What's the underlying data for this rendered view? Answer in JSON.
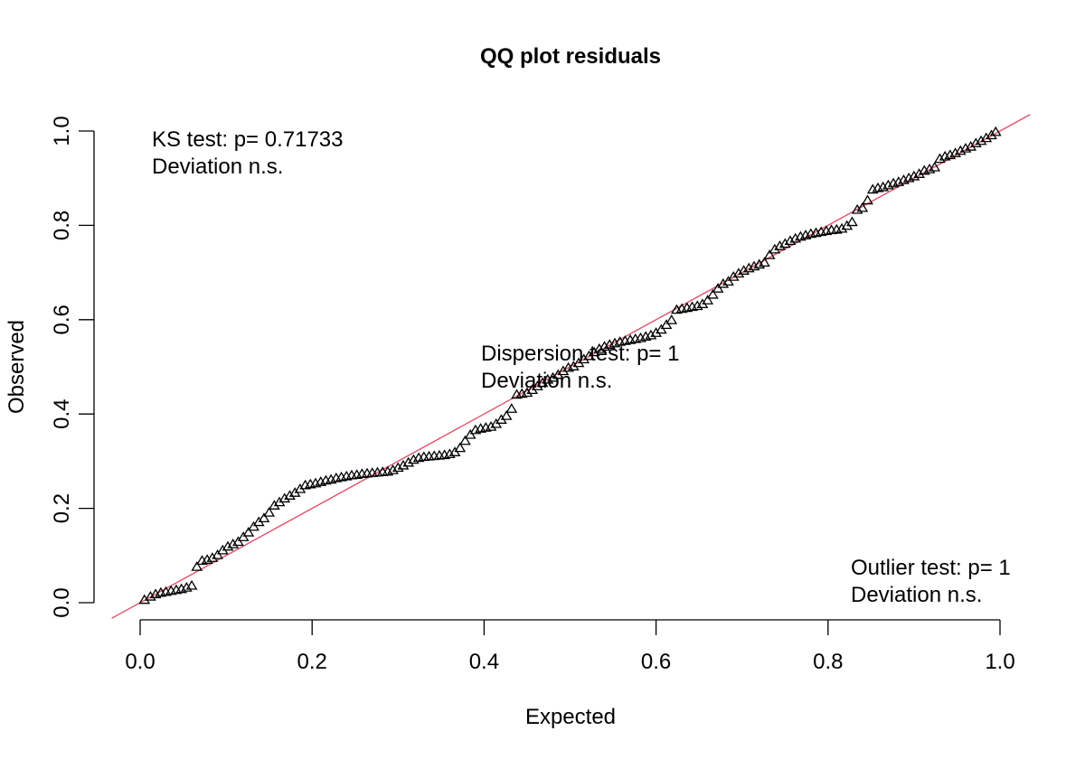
{
  "chart_data": {
    "type": "scatter",
    "title": "QQ plot residuals",
    "xlabel": "Expected",
    "ylabel": "Observed",
    "xlim": [
      0,
      1
    ],
    "ylim": [
      0,
      1
    ],
    "x_ticks": [
      "0.0",
      "0.2",
      "0.4",
      "0.6",
      "0.8",
      "1.0"
    ],
    "y_ticks": [
      "0.0",
      "0.2",
      "0.4",
      "0.6",
      "0.8",
      "1.0"
    ],
    "grid": false,
    "marker": "triangle",
    "reference_line": {
      "slope": 1,
      "intercept": 0,
      "color": "#df536b"
    },
    "annotations": {
      "ks": {
        "line1": "KS test: p= 0.71733",
        "line2": "Deviation  n.s."
      },
      "dispersion": {
        "line1": "Dispersion test: p= 1",
        "line2": "Deviation  n.s."
      },
      "outlier": {
        "line1": "Outlier test: p= 1",
        "line2": "Deviation  n.s."
      }
    },
    "points": [
      [
        0.005,
        0.005
      ],
      [
        0.012,
        0.012
      ],
      [
        0.018,
        0.017
      ],
      [
        0.024,
        0.02
      ],
      [
        0.03,
        0.022
      ],
      [
        0.036,
        0.024
      ],
      [
        0.042,
        0.026
      ],
      [
        0.048,
        0.028
      ],
      [
        0.054,
        0.031
      ],
      [
        0.06,
        0.035
      ],
      [
        0.066,
        0.075
      ],
      [
        0.072,
        0.088
      ],
      [
        0.078,
        0.09
      ],
      [
        0.084,
        0.094
      ],
      [
        0.09,
        0.1
      ],
      [
        0.096,
        0.11
      ],
      [
        0.102,
        0.118
      ],
      [
        0.108,
        0.123
      ],
      [
        0.114,
        0.128
      ],
      [
        0.12,
        0.138
      ],
      [
        0.126,
        0.148
      ],
      [
        0.132,
        0.16
      ],
      [
        0.138,
        0.17
      ],
      [
        0.144,
        0.178
      ],
      [
        0.15,
        0.19
      ],
      [
        0.156,
        0.205
      ],
      [
        0.162,
        0.212
      ],
      [
        0.168,
        0.22
      ],
      [
        0.174,
        0.226
      ],
      [
        0.18,
        0.232
      ],
      [
        0.186,
        0.24
      ],
      [
        0.192,
        0.248
      ],
      [
        0.198,
        0.25
      ],
      [
        0.204,
        0.252
      ],
      [
        0.21,
        0.255
      ],
      [
        0.216,
        0.258
      ],
      [
        0.222,
        0.26
      ],
      [
        0.228,
        0.263
      ],
      [
        0.234,
        0.265
      ],
      [
        0.24,
        0.267
      ],
      [
        0.246,
        0.269
      ],
      [
        0.252,
        0.27
      ],
      [
        0.258,
        0.272
      ],
      [
        0.264,
        0.273
      ],
      [
        0.27,
        0.274
      ],
      [
        0.276,
        0.275
      ],
      [
        0.282,
        0.276
      ],
      [
        0.288,
        0.277
      ],
      [
        0.294,
        0.28
      ],
      [
        0.3,
        0.285
      ],
      [
        0.306,
        0.29
      ],
      [
        0.312,
        0.296
      ],
      [
        0.318,
        0.302
      ],
      [
        0.324,
        0.306
      ],
      [
        0.33,
        0.308
      ],
      [
        0.336,
        0.309
      ],
      [
        0.342,
        0.31
      ],
      [
        0.348,
        0.311
      ],
      [
        0.354,
        0.312
      ],
      [
        0.36,
        0.314
      ],
      [
        0.366,
        0.318
      ],
      [
        0.372,
        0.327
      ],
      [
        0.378,
        0.342
      ],
      [
        0.384,
        0.355
      ],
      [
        0.39,
        0.365
      ],
      [
        0.396,
        0.368
      ],
      [
        0.402,
        0.37
      ],
      [
        0.408,
        0.372
      ],
      [
        0.414,
        0.378
      ],
      [
        0.42,
        0.387
      ],
      [
        0.426,
        0.395
      ],
      [
        0.432,
        0.41
      ],
      [
        0.438,
        0.44
      ],
      [
        0.444,
        0.442
      ],
      [
        0.45,
        0.444
      ],
      [
        0.456,
        0.45
      ],
      [
        0.462,
        0.458
      ],
      [
        0.468,
        0.465
      ],
      [
        0.474,
        0.472
      ],
      [
        0.48,
        0.476
      ],
      [
        0.486,
        0.482
      ],
      [
        0.492,
        0.49
      ],
      [
        0.498,
        0.497
      ],
      [
        0.504,
        0.5
      ],
      [
        0.51,
        0.507
      ],
      [
        0.516,
        0.515
      ],
      [
        0.522,
        0.522
      ],
      [
        0.528,
        0.53
      ],
      [
        0.534,
        0.537
      ],
      [
        0.54,
        0.542
      ],
      [
        0.546,
        0.546
      ],
      [
        0.552,
        0.549
      ],
      [
        0.558,
        0.552
      ],
      [
        0.564,
        0.554
      ],
      [
        0.57,
        0.556
      ],
      [
        0.576,
        0.558
      ],
      [
        0.582,
        0.56
      ],
      [
        0.588,
        0.563
      ],
      [
        0.594,
        0.566
      ],
      [
        0.6,
        0.571
      ],
      [
        0.606,
        0.578
      ],
      [
        0.612,
        0.588
      ],
      [
        0.618,
        0.598
      ],
      [
        0.624,
        0.62
      ],
      [
        0.63,
        0.622
      ],
      [
        0.636,
        0.624
      ],
      [
        0.642,
        0.626
      ],
      [
        0.648,
        0.628
      ],
      [
        0.654,
        0.632
      ],
      [
        0.66,
        0.64
      ],
      [
        0.666,
        0.652
      ],
      [
        0.672,
        0.665
      ],
      [
        0.678,
        0.675
      ],
      [
        0.684,
        0.68
      ],
      [
        0.69,
        0.69
      ],
      [
        0.696,
        0.697
      ],
      [
        0.702,
        0.703
      ],
      [
        0.708,
        0.708
      ],
      [
        0.714,
        0.712
      ],
      [
        0.72,
        0.716
      ],
      [
        0.726,
        0.72
      ],
      [
        0.732,
        0.736
      ],
      [
        0.738,
        0.748
      ],
      [
        0.744,
        0.755
      ],
      [
        0.75,
        0.76
      ],
      [
        0.756,
        0.766
      ],
      [
        0.762,
        0.771
      ],
      [
        0.768,
        0.775
      ],
      [
        0.774,
        0.778
      ],
      [
        0.78,
        0.781
      ],
      [
        0.786,
        0.783
      ],
      [
        0.792,
        0.785
      ],
      [
        0.798,
        0.787
      ],
      [
        0.804,
        0.789
      ],
      [
        0.81,
        0.79
      ],
      [
        0.816,
        0.792
      ],
      [
        0.822,
        0.798
      ],
      [
        0.828,
        0.806
      ],
      [
        0.834,
        0.832
      ],
      [
        0.84,
        0.836
      ],
      [
        0.846,
        0.852
      ],
      [
        0.852,
        0.875
      ],
      [
        0.858,
        0.878
      ],
      [
        0.864,
        0.88
      ],
      [
        0.87,
        0.884
      ],
      [
        0.876,
        0.888
      ],
      [
        0.882,
        0.891
      ],
      [
        0.888,
        0.895
      ],
      [
        0.894,
        0.899
      ],
      [
        0.9,
        0.903
      ],
      [
        0.906,
        0.908
      ],
      [
        0.912,
        0.915
      ],
      [
        0.918,
        0.918
      ],
      [
        0.924,
        0.922
      ],
      [
        0.93,
        0.94
      ],
      [
        0.936,
        0.945
      ],
      [
        0.942,
        0.948
      ],
      [
        0.948,
        0.952
      ],
      [
        0.954,
        0.957
      ],
      [
        0.96,
        0.962
      ],
      [
        0.966,
        0.966
      ],
      [
        0.972,
        0.973
      ],
      [
        0.978,
        0.978
      ],
      [
        0.984,
        0.984
      ],
      [
        0.99,
        0.99
      ],
      [
        0.995,
        0.997
      ]
    ]
  }
}
